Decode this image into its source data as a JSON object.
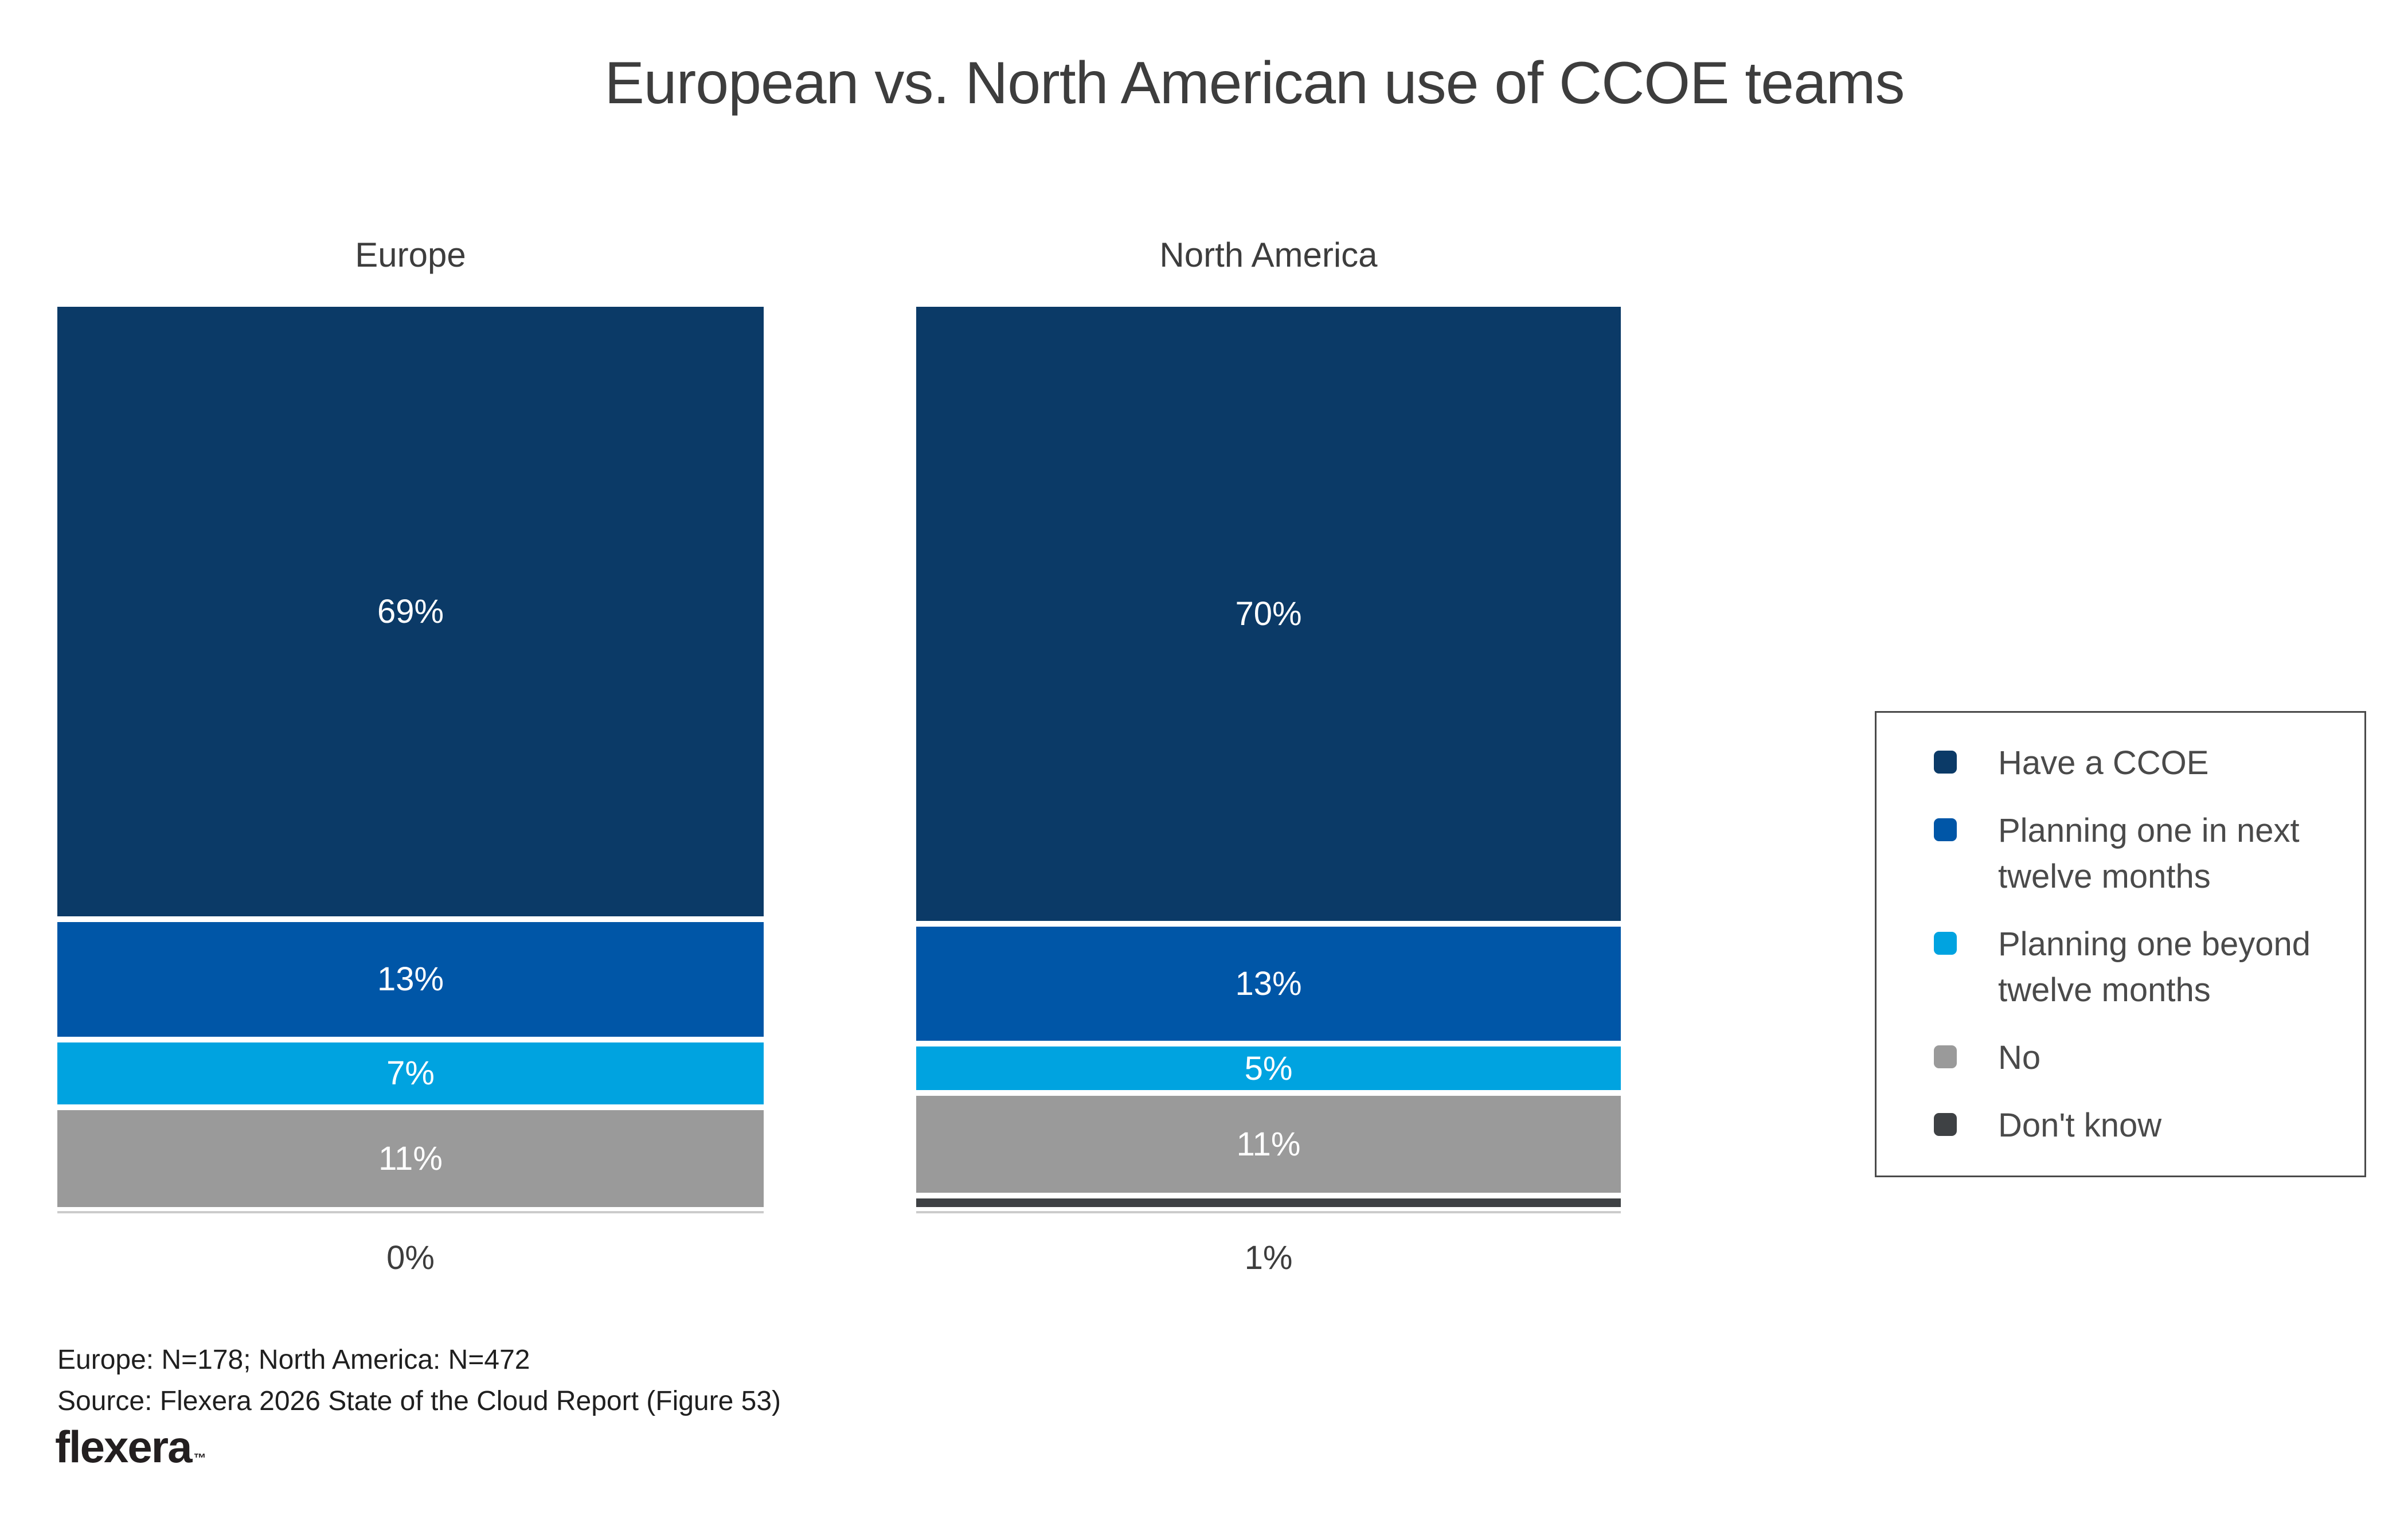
{
  "page": {
    "background": "#FFFFFF"
  },
  "chart_data": {
    "type": "bar",
    "stacked": true,
    "orientation": "vertical",
    "title": "European vs. North American use of CCOE teams",
    "categories": [
      "Europe",
      "North America"
    ],
    "series": [
      {
        "name": "Have a CCOE",
        "color": "#0B3A67",
        "values": [
          69,
          70
        ]
      },
      {
        "name": "Planning one in next twelve months",
        "color": "#0056A7",
        "values": [
          13,
          13
        ]
      },
      {
        "name": "Planning one beyond twelve months",
        "color": "#00A3E0",
        "values": [
          7,
          5
        ]
      },
      {
        "name": "No",
        "color": "#9A9A9A",
        "values": [
          11,
          11
        ]
      },
      {
        "name": "Don't know",
        "color": "#3E4144",
        "values": [
          0,
          1
        ]
      }
    ],
    "value_suffix": "%",
    "inside_label_min_value": 4,
    "below_bar_labels": [
      "0%",
      "1%"
    ],
    "ylim": [
      0,
      100
    ],
    "grid": false,
    "legend_position": "right"
  },
  "footer": {
    "sample_note": "Europe: N=178; North America: N=472",
    "source_note": "Source: Flexera 2026 State of the Cloud Report (Figure 53)",
    "logo_text": "flexera",
    "trademark": "™"
  },
  "colors": {
    "title_text": "#3D3D3D",
    "label_inside_bar": "#FFFFFF",
    "legend_border": "#4A4A4A",
    "axis_line": "#CBCBCB"
  }
}
